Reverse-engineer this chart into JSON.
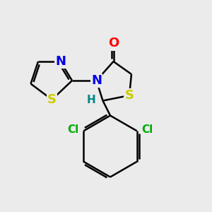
{
  "background_color": "#ebebeb",
  "atom_colors": {
    "O": "#ff0000",
    "N": "#0000ee",
    "S": "#cccc00",
    "Cl": "#00aa00",
    "H": "#008888",
    "C": "#000000"
  },
  "bond_color": "#000000",
  "bond_width": 1.8,
  "font_size_atoms": 13,
  "font_size_small": 11
}
